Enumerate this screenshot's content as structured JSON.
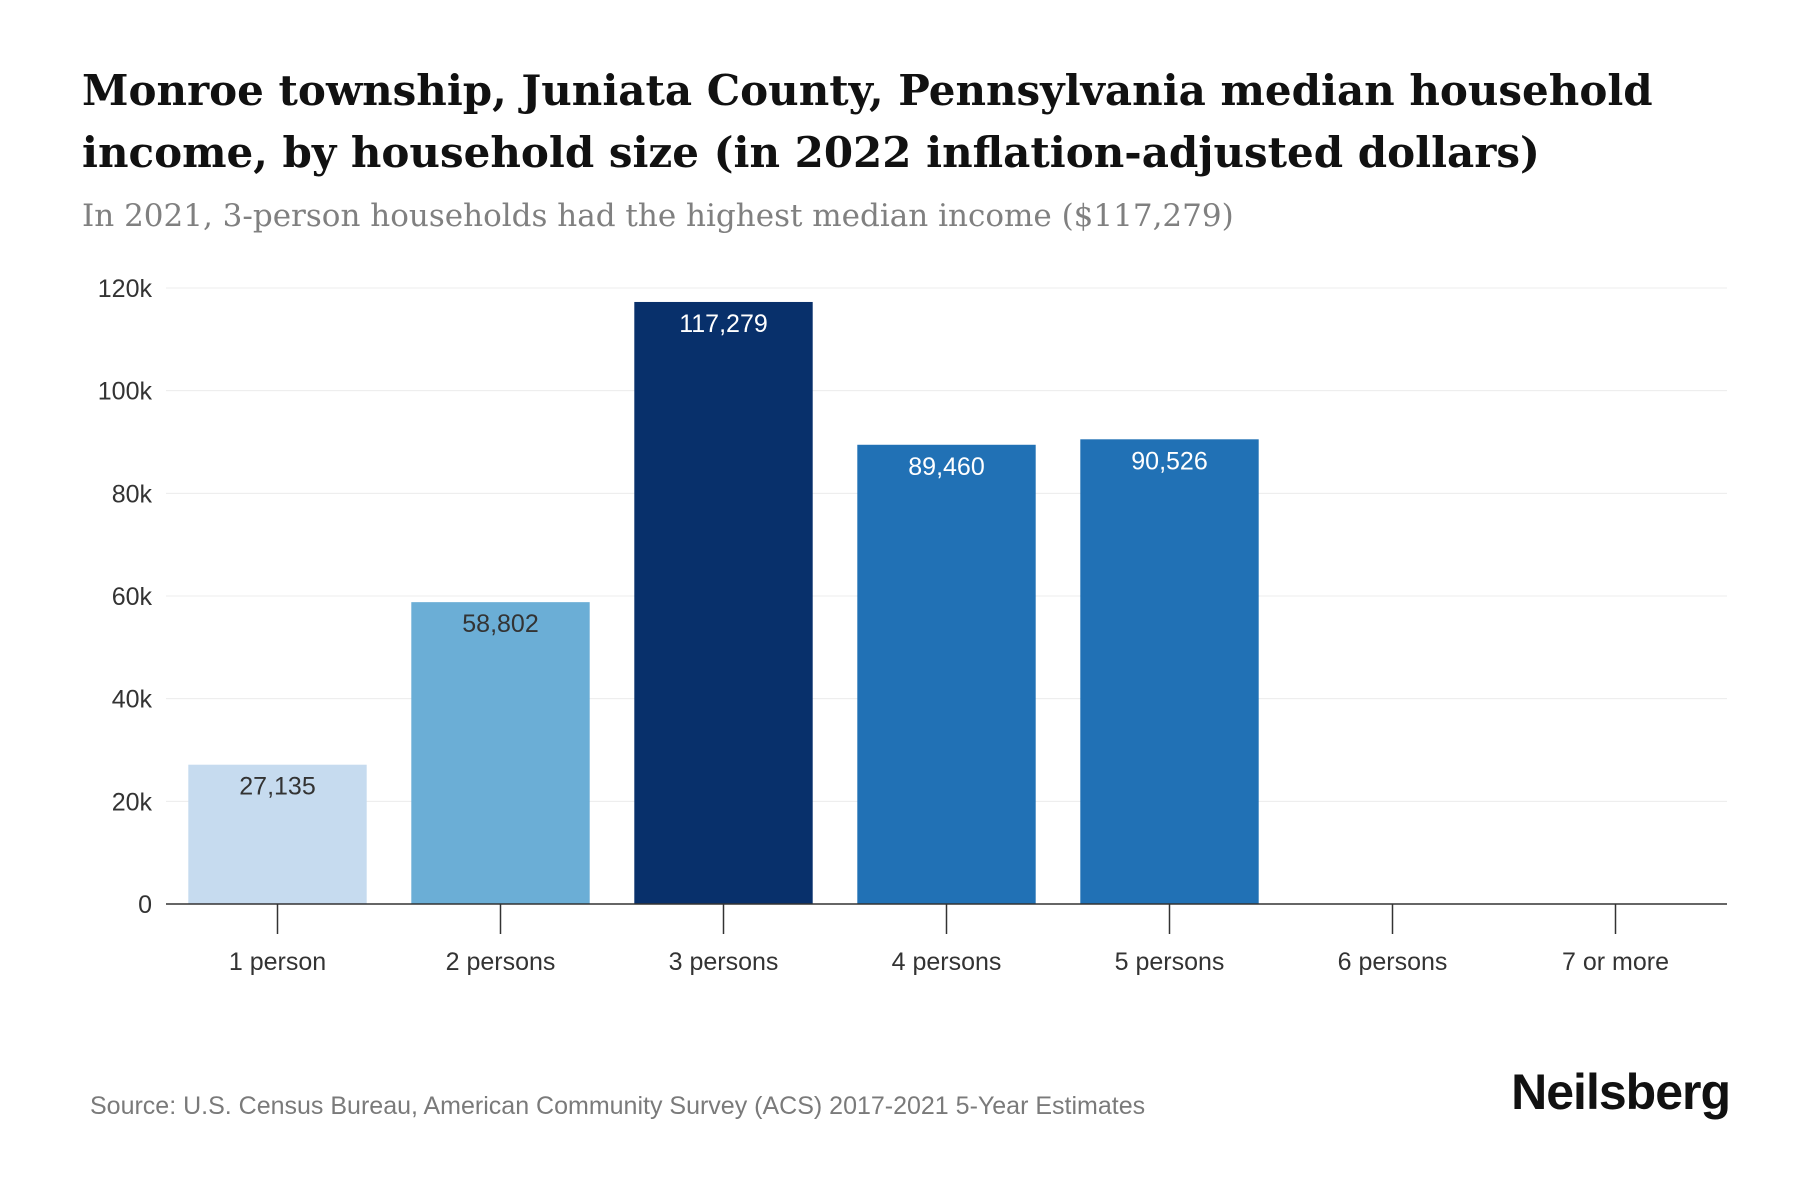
{
  "header": {
    "title": "Monroe township, Juniata County, Pennsylvania median household income, by household size (in 2022 inflation-adjusted dollars)",
    "subtitle": "In 2021, 3-person households had the highest median income ($117,279)"
  },
  "footer": {
    "source": "Source: U.S. Census Bureau, American Community Survey (ACS) 2017-2021 5-Year Estimates",
    "logo": "Neilsberg"
  },
  "chart_data": {
    "type": "bar",
    "title": "Monroe township, Juniata County, Pennsylvania median household income, by household size (in 2022 inflation-adjusted dollars)",
    "subtitle": "In 2021, 3-person households had the highest median income ($117,279)",
    "xlabel": "",
    "ylabel": "",
    "categories": [
      "1 person",
      "2 persons",
      "3 persons",
      "4 persons",
      "5 persons",
      "6 persons",
      "7 or more"
    ],
    "values": [
      27135,
      58802,
      117279,
      89460,
      90526,
      null,
      null
    ],
    "data_labels": [
      "27,135",
      "58,802",
      "117,279",
      "89,460",
      "90,526",
      "",
      ""
    ],
    "bar_colors": [
      "#c6dbef",
      "#6baed6",
      "#08306b",
      "#2171b5",
      "#2171b5",
      "#2171b5",
      "#2171b5"
    ],
    "label_colors": [
      "#333333",
      "#333333",
      "#ffffff",
      "#ffffff",
      "#ffffff",
      "#ffffff",
      "#ffffff"
    ],
    "ylim": [
      0,
      120000
    ],
    "yticks": [
      0,
      20000,
      40000,
      60000,
      80000,
      100000,
      120000
    ],
    "ytick_labels": [
      "0",
      "20k",
      "40k",
      "60k",
      "80k",
      "100k",
      "120k"
    ],
    "grid": true,
    "legend": "none"
  }
}
